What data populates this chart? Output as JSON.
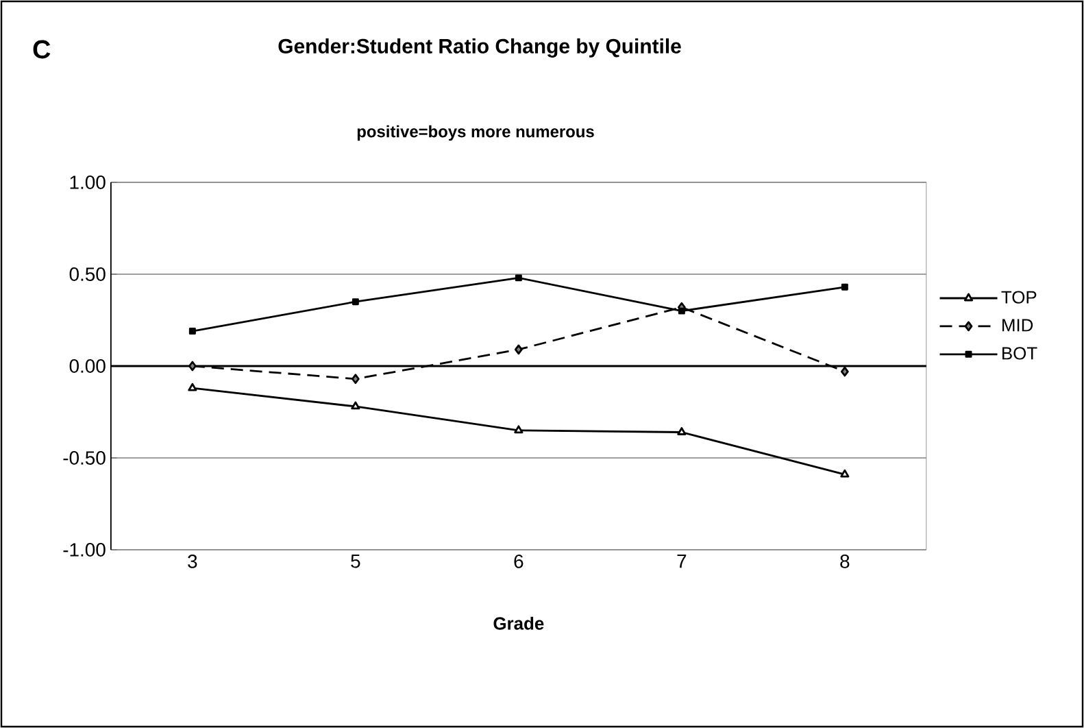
{
  "chart_data": {
    "type": "line",
    "title": "Gender:Student Ratio Change by Quintile",
    "subtitle": "positive=boys more numerous",
    "xlabel": "Grade",
    "annotations": [
      "C"
    ],
    "categories": [
      "3",
      "5",
      "6",
      "7",
      "8"
    ],
    "series": [
      {
        "name": "TOP",
        "color": "#000000",
        "marker": "triangle",
        "line_style": "solid",
        "values": [
          -0.12,
          -0.22,
          -0.35,
          -0.36,
          -0.59
        ]
      },
      {
        "name": "MID",
        "color": "#000000",
        "marker": "diamond",
        "line_style": "dashed",
        "values": [
          0,
          -0.07,
          0.09,
          0.32,
          -0.03
        ]
      },
      {
        "name": "BOT",
        "color": "#000000",
        "marker": "square",
        "line_style": "solid",
        "values": [
          0.19,
          0.35,
          0.48,
          0.3,
          0.43
        ]
      }
    ],
    "ylim": [
      -1,
      1
    ],
    "yticks": [
      {
        "value": -1,
        "label": "-1.00"
      },
      {
        "value": -0.5,
        "label": "-0.50"
      },
      {
        "value": 0,
        "label": "0.00"
      },
      {
        "value": 0.5,
        "label": "0.50"
      },
      {
        "value": 1,
        "label": "1.00"
      }
    ],
    "ref_lines": [
      {
        "axis": "y",
        "value": 0
      }
    ],
    "grid": "y",
    "legend": "right"
  }
}
